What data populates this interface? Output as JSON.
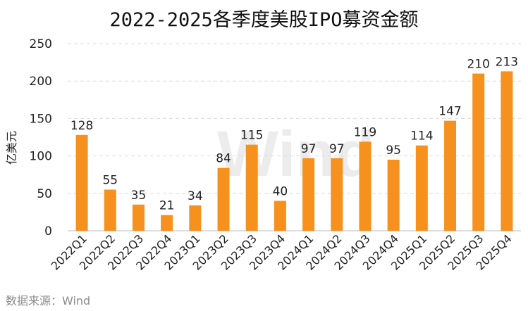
{
  "colors": {
    "bar": "#F7911E",
    "grid": "#d9d9d9",
    "axis": "#bfbfbf",
    "text": "#222222",
    "watermark": "#ececec"
  },
  "source": "数据来源：Wind",
  "watermark": "Wind",
  "chart_data": {
    "type": "bar",
    "title": "2022-2025各季度美股IPO募资金额",
    "xlabel": "",
    "ylabel": "亿美元",
    "ylim": [
      0,
      250
    ],
    "yticks": [
      0,
      50,
      100,
      150,
      200,
      250
    ],
    "grid": true,
    "categories": [
      "2022Q1",
      "2022Q2",
      "2022Q3",
      "2022Q4",
      "2023Q1",
      "2023Q2",
      "2023Q3",
      "2023Q4",
      "2024Q1",
      "2024Q2",
      "2024Q3",
      "2024Q4",
      "2025Q1",
      "2025Q2",
      "2025Q3",
      "2025Q4"
    ],
    "values": [
      128,
      55,
      35,
      21,
      34,
      84,
      115,
      40,
      97,
      97,
      119,
      95,
      114,
      147,
      210,
      213
    ],
    "data_labels": true
  }
}
